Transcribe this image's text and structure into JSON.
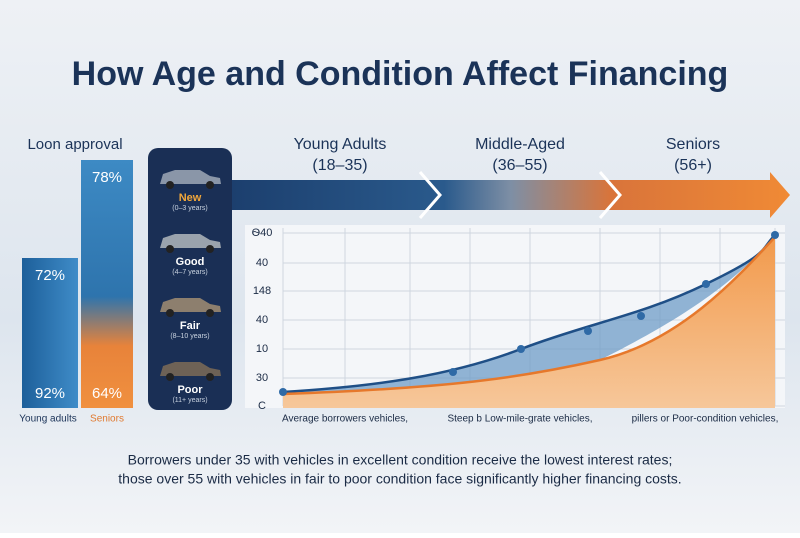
{
  "header": {
    "title": "How Age and Condition Affect Financing"
  },
  "approval": {
    "title": "Loon approval",
    "young": {
      "top": "72%",
      "bottom": "92%",
      "label": "Young adults"
    },
    "seniors": {
      "top": "78%",
      "bottom": "64%",
      "label": "Seniors"
    }
  },
  "conditions": [
    {
      "label": "New",
      "range": "(0–3 years)"
    },
    {
      "label": "Good",
      "range": "(4–7 years)"
    },
    {
      "label": "Fair",
      "range": "(8–10 years)"
    },
    {
      "label": "Poor",
      "range": "(11+ years)"
    }
  ],
  "groups": [
    {
      "name": "Young Adults",
      "range": "(18–35)"
    },
    {
      "name": "Middle-Aged",
      "range": "(36–55)"
    },
    {
      "name": "Seniors",
      "range": "(56+)"
    }
  ],
  "chart": {
    "y_labels": [
      "Ѳ40",
      "40",
      "148",
      "40",
      "10",
      "30",
      "C"
    ],
    "x_labels": [
      "Average borrowers vehicles,",
      "Steep b Low-mile-grate vehicles,",
      "pillers or Poor-condition vehicles,"
    ]
  },
  "caption": [
    "Borrowers under 35 with vehicles in excellent condition receive the lowest interest rates;",
    "those over 55 with vehicles in fair to poor condition face significantly higher financing costs."
  ]
}
